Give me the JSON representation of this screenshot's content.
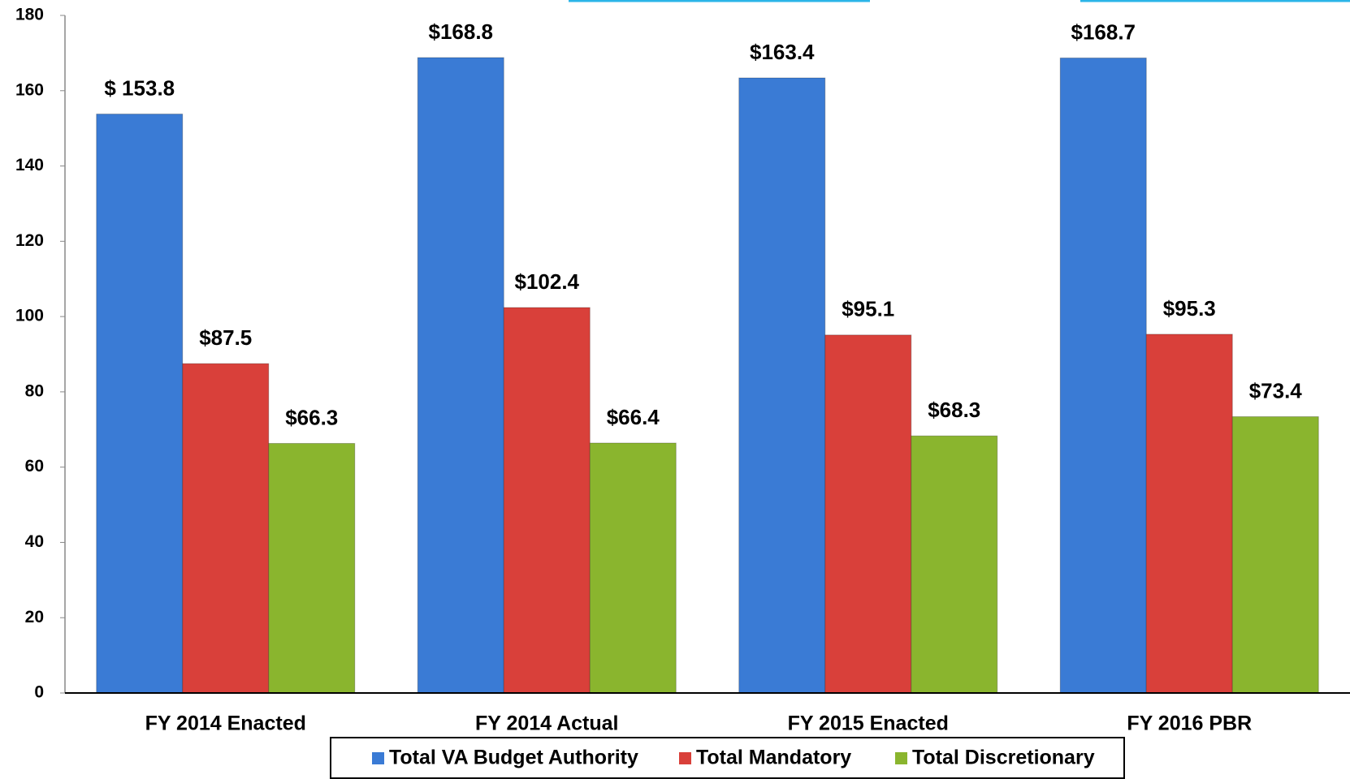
{
  "chart_data": {
    "type": "bar",
    "categories": [
      "FY 2014 Enacted",
      "FY 2014 Actual",
      "FY 2015 Enacted",
      "FY 2016 PBR"
    ],
    "series": [
      {
        "name": "Total VA Budget Authority",
        "color": "#3a7bd5",
        "values": [
          153.8,
          168.8,
          163.4,
          168.7
        ],
        "value_labels": [
          "$ 153.8",
          "$168.8",
          "$163.4",
          "$168.7"
        ]
      },
      {
        "name": "Total Mandatory",
        "color": "#d9403a",
        "values": [
          87.5,
          102.4,
          95.1,
          95.3
        ],
        "value_labels": [
          "$87.5",
          "$102.4",
          "$95.1",
          "$95.3"
        ]
      },
      {
        "name": "Total Discretionary",
        "color": "#8ab52e",
        "values": [
          66.3,
          66.4,
          68.3,
          73.4
        ],
        "value_labels": [
          "$66.3",
          "$66.4",
          "$68.3",
          "$73.4"
        ]
      }
    ],
    "ylim": [
      0,
      180
    ],
    "yticks": [
      0,
      20,
      40,
      60,
      80,
      100,
      120,
      140,
      160,
      180
    ],
    "legend": "bottom"
  }
}
